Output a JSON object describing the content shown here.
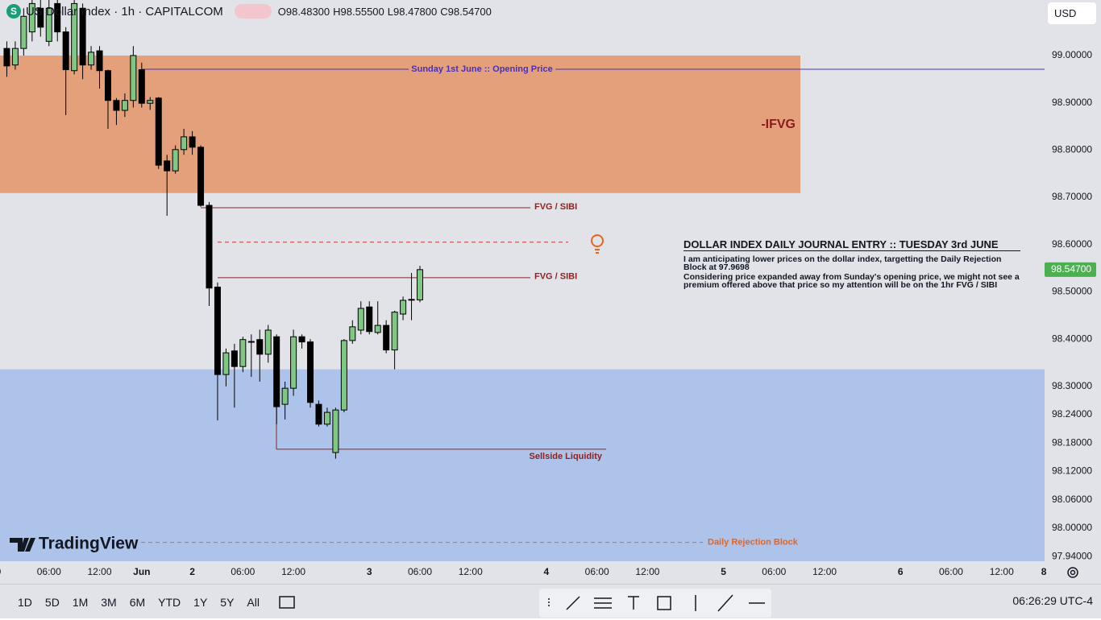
{
  "header": {
    "title": "US Dollar Index · 1h · CAPITALCOM",
    "ohlc": [
      {
        "key": "O",
        "value": "98.48300"
      },
      {
        "key": "H",
        "value": "98.55500"
      },
      {
        "key": "L",
        "value": "98.47800"
      },
      {
        "key": "C",
        "value": "98.54700"
      }
    ],
    "currency": "USD"
  },
  "chart_data": {
    "type": "candlestick",
    "up_color": "#81c784",
    "down_color": "#000000",
    "grid": false,
    "categories": [
      "0",
      null,
      null,
      null,
      null,
      null,
      "06:00",
      null,
      null,
      null,
      null,
      null,
      "12:00",
      null,
      null,
      null,
      null,
      "Jun",
      null,
      null,
      null,
      null,
      null,
      "2",
      null,
      null,
      null,
      null,
      null,
      "06:00",
      null,
      null,
      null,
      null,
      null,
      "12:00",
      null,
      null,
      null,
      null,
      null,
      null,
      null,
      null,
      "3",
      null,
      null,
      null,
      null,
      null,
      "06:00",
      null,
      null,
      null,
      null,
      null,
      "12:00",
      null,
      null,
      null,
      null,
      null,
      null,
      null,
      null,
      "4",
      null,
      null,
      null,
      null,
      null,
      "06:00",
      null,
      null,
      null,
      null,
      null,
      "12:00",
      null,
      null,
      null,
      null,
      null,
      null,
      null,
      null,
      "5",
      null,
      null,
      null,
      null,
      null,
      "06:00",
      null,
      null,
      null,
      null,
      null,
      "12:00",
      null,
      null,
      null,
      null,
      null,
      null,
      null,
      null,
      "6",
      null,
      null,
      null,
      null,
      null,
      "06:00",
      null,
      null,
      null,
      null,
      null,
      "12:00",
      null,
      null,
      null,
      null,
      "8"
    ],
    "open": [
      null,
      99.015,
      98.98,
      99.015,
      99.05,
      99.1,
      99.03,
      99.11,
      99.05,
      98.968,
      99.1,
      98.98,
      99.01,
      98.968,
      98.905,
      98.884,
      98.905,
      98.97,
      98.899,
      98.91,
      98.777,
      98.756,
      98.801,
      98.828,
      98.806,
      98.683,
      98.51,
      98.325,
      98.375,
      98.342,
      98.394,
      98.399,
      98.368,
      98.405,
      98.262,
      98.296,
      98.405,
      98.394,
      98.262,
      98.22,
      98.16,
      98.25,
      98.397,
      98.419,
      98.468,
      98.414,
      98.429,
      98.377,
      98.453,
      98.484,
      98.483,
      null,
      null,
      null,
      null,
      null,
      null,
      null,
      null,
      null,
      null,
      null,
      null,
      null,
      null,
      null,
      null,
      null,
      null,
      null,
      null,
      null,
      null,
      null,
      null,
      null,
      null,
      null,
      null,
      null,
      null,
      null,
      null,
      null,
      null,
      null,
      null,
      null,
      null,
      null,
      null,
      null,
      null,
      null,
      null,
      null,
      null,
      null,
      null,
      null,
      null,
      null,
      null,
      null,
      null,
      null,
      null,
      null,
      null,
      null,
      null,
      null,
      null,
      null,
      null,
      null,
      null,
      null,
      null,
      null,
      null,
      null,
      null,
      null,
      null
    ],
    "high": [
      null,
      99.03,
      99.03,
      99.1,
      99.12,
      99.12,
      99.12,
      99.12,
      99.06,
      99.12,
      99.11,
      99.02,
      99.02,
      98.97,
      98.91,
      98.92,
      99.02,
      98.985,
      98.912,
      98.912,
      98.79,
      98.81,
      98.845,
      98.84,
      98.81,
      98.69,
      98.52,
      98.38,
      98.39,
      98.405,
      98.41,
      98.42,
      98.43,
      98.41,
      98.31,
      98.42,
      98.41,
      98.4,
      98.27,
      98.255,
      98.255,
      98.4,
      98.44,
      98.48,
      98.48,
      98.48,
      98.44,
      98.46,
      98.49,
      98.54,
      98.555,
      null,
      null,
      null,
      null,
      null,
      null,
      null,
      null,
      null,
      null,
      null,
      null,
      null,
      null,
      null,
      null,
      null,
      null,
      null,
      null,
      null,
      null,
      null,
      null,
      null,
      null,
      null,
      null,
      null,
      null,
      null,
      null,
      null,
      null,
      null,
      null,
      null,
      null,
      null,
      null,
      null,
      null,
      null,
      null,
      null,
      null,
      null,
      null,
      null,
      null,
      null,
      null,
      null,
      null,
      null,
      null,
      null,
      null,
      null,
      null,
      null,
      null,
      null,
      null,
      null,
      null,
      null,
      null,
      null,
      null,
      null,
      null,
      null,
      null
    ],
    "low": [
      null,
      98.955,
      98.97,
      99.0,
      99.03,
      99.04,
      99.02,
      99.03,
      98.874,
      98.96,
      98.95,
      98.97,
      98.93,
      98.845,
      98.853,
      98.87,
      98.89,
      98.89,
      98.885,
      98.76,
      98.661,
      98.75,
      98.79,
      98.79,
      98.68,
      98.47,
      98.228,
      98.3,
      98.255,
      98.33,
      98.32,
      98.31,
      98.35,
      98.22,
      98.23,
      98.28,
      98.38,
      98.255,
      98.215,
      98.215,
      98.147,
      98.245,
      98.39,
      98.41,
      98.41,
      98.41,
      98.37,
      98.336,
      98.44,
      98.44,
      98.478,
      null,
      null,
      null,
      null,
      null,
      null,
      null,
      null,
      null,
      null,
      null,
      null,
      null,
      null,
      null,
      null,
      null,
      null,
      null,
      null,
      null,
      null,
      null,
      null,
      null,
      null,
      null,
      null,
      null,
      null,
      null,
      null,
      null,
      null,
      null,
      null,
      null,
      null,
      null,
      null,
      null,
      null,
      null,
      null,
      null,
      null,
      null,
      null,
      null,
      null,
      null,
      null,
      null,
      null,
      null,
      null,
      null,
      null,
      null,
      null,
      null,
      null,
      null,
      null,
      null,
      null,
      null,
      null,
      null,
      null,
      null,
      null,
      null,
      null
    ],
    "close": [
      null,
      98.978,
      99.015,
      99.083,
      99.11,
      99.06,
      99.1,
      99.05,
      98.97,
      99.11,
      98.98,
      99.007,
      98.968,
      98.905,
      98.884,
      98.905,
      99.0,
      98.899,
      98.905,
      98.768,
      98.756,
      98.801,
      98.828,
      98.806,
      98.683,
      98.508,
      98.325,
      98.371,
      98.342,
      98.399,
      98.395,
      98.368,
      98.419,
      98.257,
      98.296,
      98.405,
      98.394,
      98.266,
      98.22,
      98.245,
      98.25,
      98.397,
      98.426,
      98.465,
      98.416,
      98.429,
      98.377,
      98.457,
      98.482,
      98.483,
      98.547,
      null,
      null,
      null,
      null,
      null,
      null,
      null,
      null,
      null,
      null,
      null,
      null,
      null,
      null,
      null,
      null,
      null,
      null,
      null,
      null,
      null,
      null,
      null,
      null,
      null,
      null,
      null,
      null,
      null,
      null,
      null,
      null,
      null,
      null,
      null,
      null,
      null,
      null,
      null,
      null,
      null,
      null,
      null,
      null,
      null,
      null,
      null,
      null,
      null,
      null,
      null,
      null,
      null,
      null,
      null,
      null,
      null,
      null,
      null,
      null,
      null,
      null,
      null,
      null,
      null,
      null,
      null,
      null,
      null,
      null,
      null,
      null,
      null,
      null
    ],
    "ylim": [
      97.93,
      99.1175
    ],
    "yticks": [
      {
        "value": 99.0,
        "label": "99.00000"
      },
      {
        "value": 98.9,
        "label": "98.90000"
      },
      {
        "value": 98.8,
        "label": "98.80000"
      },
      {
        "value": 98.7,
        "label": "98.70000"
      },
      {
        "value": 98.6,
        "label": "98.60000"
      },
      {
        "value": 98.5,
        "label": "98.50000"
      },
      {
        "value": 98.4,
        "label": "98.40000"
      },
      {
        "value": 98.3,
        "label": "98.30000"
      },
      {
        "value": 98.24,
        "label": "98.24000"
      },
      {
        "value": 98.18,
        "label": "98.18000"
      },
      {
        "value": 98.12,
        "label": "98.12000"
      },
      {
        "value": 98.06,
        "label": "98.06000"
      },
      {
        "value": 98.0,
        "label": "98.00000"
      },
      {
        "value": 97.94,
        "label": "97.94000"
      }
    ],
    "last_price": {
      "value": 98.547,
      "label": "98.54700",
      "color": "#4caf50"
    },
    "zones": [
      {
        "label": "-IFVG",
        "from": 98.709,
        "to": 99.0,
        "color": "#e4a07b"
      },
      {
        "from": 97.93,
        "to": 98.336,
        "color": "#aec3ea"
      }
    ],
    "levels": [
      {
        "label": "Sunday 1st June :: Opening Price",
        "value": 98.971,
        "color": "#4a30b6"
      },
      {
        "label": "FVG / SIBI",
        "value": 98.678,
        "color": "#8b2323"
      },
      {
        "value": 98.605,
        "color": "#c0392b",
        "dashed": true
      },
      {
        "label": "FVG / SIBI",
        "value": 98.53,
        "color": "#8b2323"
      },
      {
        "label": "Sellside Liquidity",
        "value": 98.167,
        "color": "#8b2323"
      },
      {
        "label": "Daily Rejection Block",
        "value": 97.9698,
        "color": "#e8641c",
        "dashed": true
      }
    ]
  },
  "journal": {
    "title": "DOLLAR INDEX DAILY JOURNAL ENTRY :: TUESDAY 3rd JUNE",
    "paragraphs": [
      "I am anticipating lower prices on the dollar index, targetting the Daily Rejection Block at 97.9698",
      "Considering price expanded away from Sunday's opening price, we might not see a premium offered above that price so my attention will be on the 1hr FVG / SIBI"
    ]
  },
  "logo": "TradingView",
  "toolbar": {
    "ranges": [
      "1D",
      "5D",
      "1M",
      "3M",
      "6M",
      "YTD",
      "1Y",
      "5Y",
      "All"
    ],
    "clock": "06:26:29 UTC-4"
  }
}
